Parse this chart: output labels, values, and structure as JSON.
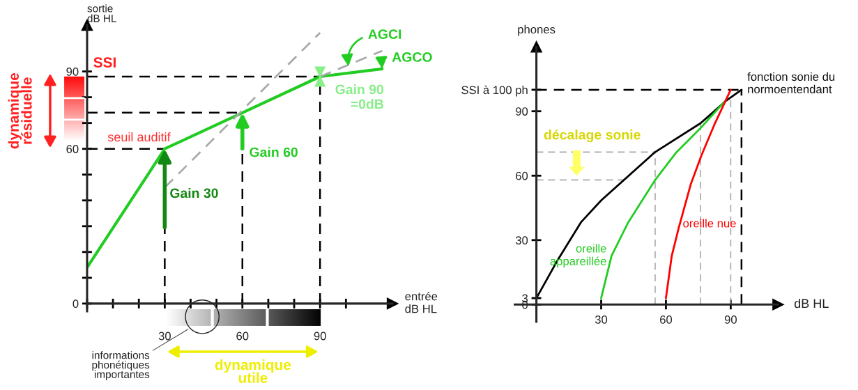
{
  "chart_data": [
    {
      "type": "line",
      "xlabel": "entrée\ndB HL",
      "ylabel": "sortie\ndB HL",
      "xlim": [
        0,
        118
      ],
      "ylim": [
        -3,
        108
      ],
      "xticks": [
        {
          "value": 0,
          "label": null
        },
        {
          "value": 10,
          "label": null
        },
        {
          "value": 20,
          "label": null
        },
        30,
        {
          "value": 40,
          "label": null
        },
        {
          "value": 50,
          "label": null
        },
        60,
        {
          "value": 70,
          "label": null
        },
        {
          "value": 80,
          "label": null
        },
        90,
        {
          "value": 100,
          "label": null
        }
      ],
      "yticks": [
        0,
        {
          "value": 10,
          "label": null
        },
        {
          "value": 20,
          "label": null
        },
        {
          "value": 30,
          "label": null
        },
        {
          "value": 40,
          "label": null
        },
        {
          "value": 50,
          "label": null
        },
        60,
        {
          "value": 70,
          "label": null
        },
        {
          "value": 80,
          "label": null
        },
        90
      ],
      "series": [
        {
          "color": "#22cc22",
          "x": [
            0,
            30,
            60,
            90,
            114
          ],
          "values": [
            14,
            60,
            74,
            88,
            91
          ]
        },
        {
          "color": "#aaaaaa",
          "line_style": "dashed",
          "x": [
            30,
            90
          ],
          "values": [
            45,
            105
          ]
        },
        {
          "color": "#aaaaaa",
          "line_style": "dashed",
          "x": [
            90,
            114
          ],
          "values": [
            88,
            98
          ]
        }
      ],
      "ref_lines": [
        {
          "axis": "x",
          "value": 30,
          "color": "#000000",
          "line_style": "dashed"
        },
        {
          "axis": "x",
          "value": 60,
          "color": "#000000",
          "line_style": "dashed"
        },
        {
          "axis": "x",
          "value": 90,
          "color": "#000000",
          "line_style": "dashed"
        },
        {
          "axis": "y",
          "value": 60,
          "color": "#000000",
          "line_style": "dashed"
        },
        {
          "axis": "y",
          "value": 74,
          "color": "#000000",
          "line_style": "dashed"
        },
        {
          "axis": "y",
          "value": 88,
          "color": "#000000",
          "line_style": "dashed"
        }
      ],
      "annotations": [
        "SSI",
        "seuil auditif",
        "dynamique\nrésiduelle",
        {
          "text": "Gain 30",
          "x": 30,
          "y": 60
        },
        {
          "text": "Gain 60",
          "x": 60,
          "y": 74
        },
        {
          "text": "Gain 90\n=0dB",
          "x": 90,
          "y": 88
        },
        {
          "text": "AGCI",
          "x": 101,
          "y": 92
        },
        {
          "text": "AGCO",
          "x": 114,
          "y": 91
        },
        "informations\nphonétiques\nimportantes",
        "dynamique\nutile"
      ],
      "grid": false,
      "legend": false,
      "marker": "none",
      "line_style": "solid"
    },
    {
      "type": "line",
      "xlabel": "dB HL",
      "ylabel": "phones",
      "xlim": [
        -10,
        112
      ],
      "ylim": [
        -8,
        120
      ],
      "xticks": [
        30,
        60,
        90
      ],
      "yticks": [
        0,
        3,
        30,
        60,
        90,
        {
          "value": 100,
          "label": "SSI à 100 ph"
        }
      ],
      "series": [
        {
          "name": "fonction sonie du\nnormoentendant",
          "color": "#000000",
          "x": [
            0,
            9.9,
            20.8,
            30,
            55,
            76,
            88,
            95
          ],
          "values": [
            3,
            20.8,
            38.5,
            48.5,
            71,
            84.4,
            95,
            100
          ]
        },
        {
          "name": "oreille\nappareillée",
          "color": "#22cc22",
          "x": [
            30,
            34.8,
            42.5,
            55,
            64.6,
            75.6,
            87.6
          ],
          "values": [
            3,
            22.7,
            38.2,
            58,
            70.6,
            81.7,
            95
          ]
        },
        {
          "name": "oreille nue",
          "color": "#ff0000",
          "x": [
            60,
            62.7,
            66,
            71.5,
            76.4,
            82.4,
            90
          ],
          "values": [
            3,
            22.7,
            36,
            56,
            69.3,
            83.7,
            100
          ]
        }
      ],
      "ref_lines": [
        {
          "axis": "y",
          "value": 100,
          "color": "#000000",
          "line_style": "dashed"
        },
        {
          "axis": "x",
          "value": 95,
          "color": "#000000",
          "line_style": "dashed"
        },
        {
          "axis": "y",
          "value": 71,
          "color": "#aaaaaa",
          "line_style": "dashed"
        },
        {
          "axis": "y",
          "value": 58,
          "color": "#aaaaaa",
          "line_style": "dashed"
        },
        {
          "axis": "x",
          "value": 55,
          "color": "#aaaaaa",
          "line_style": "dashed"
        },
        {
          "axis": "x",
          "value": 76,
          "color": "#aaaaaa",
          "line_style": "dashed"
        },
        {
          "axis": "x",
          "value": 90,
          "color": "#aaaaaa",
          "line_style": "dashed"
        }
      ],
      "annotations": [
        "décalage sonie"
      ],
      "grid": false,
      "legend": false,
      "marker": "none",
      "line_style": "solid"
    }
  ]
}
